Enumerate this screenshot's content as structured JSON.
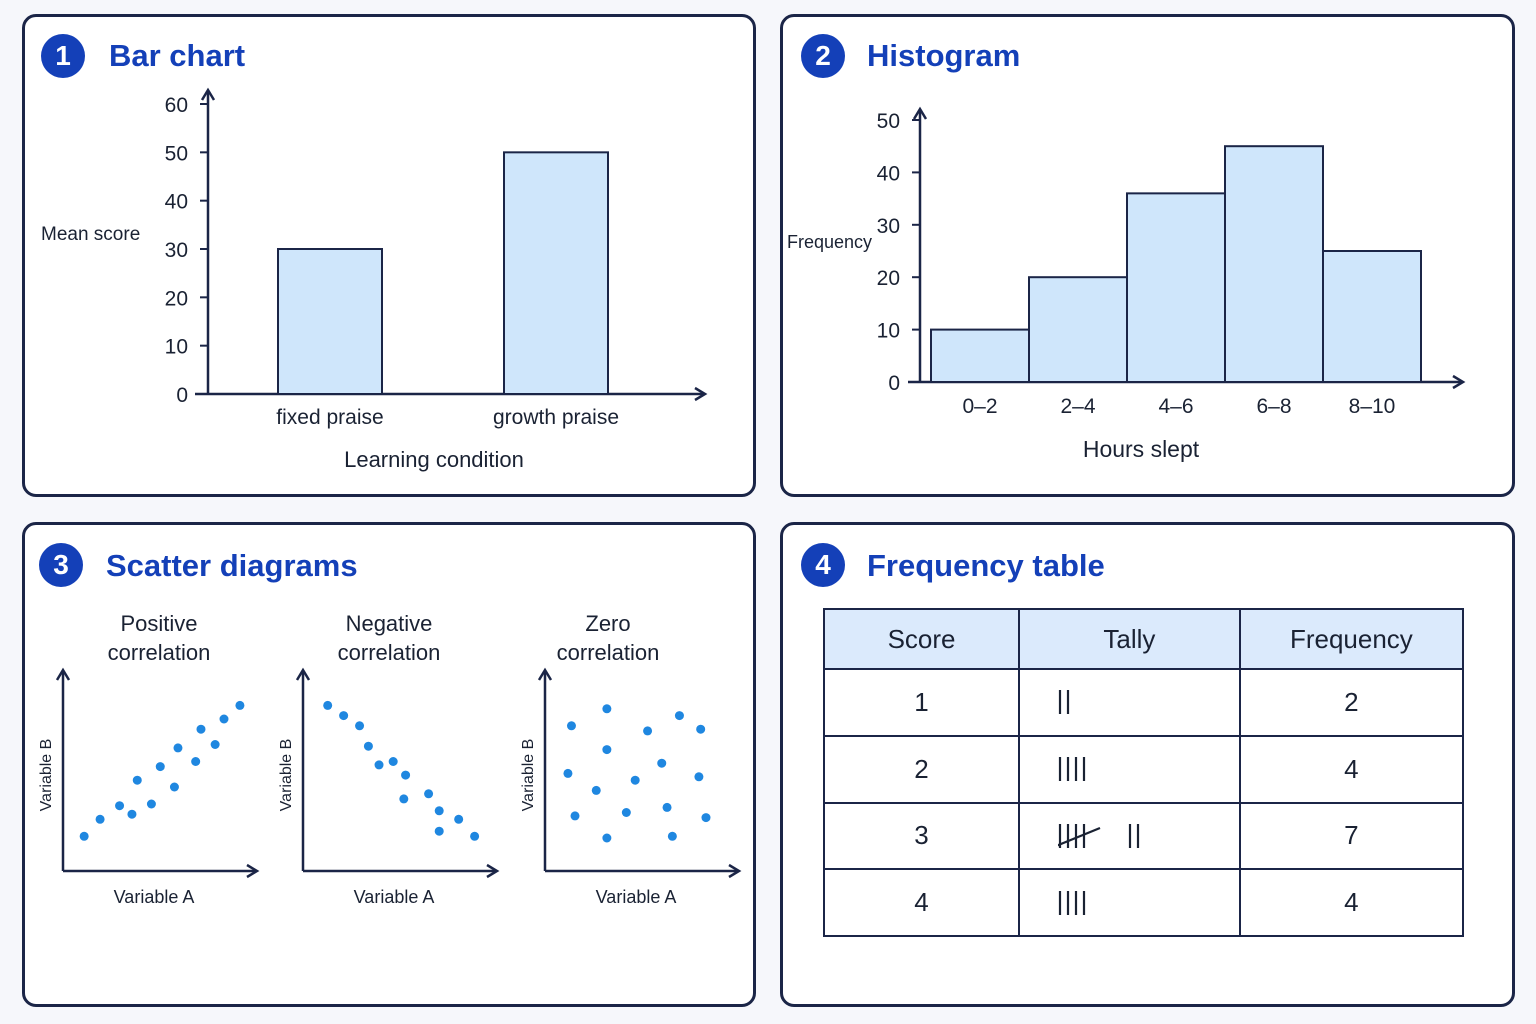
{
  "panels": [
    {
      "number": "1",
      "title": "Bar chart",
      "chart_data": {
        "type": "bar",
        "categories": [
          "fixed praise",
          "growth praise"
        ],
        "values": [
          30,
          50
        ],
        "xlabel": "Learning condition",
        "ylabel": "Mean score",
        "ylim": [
          0,
          60
        ],
        "yticks": [
          0,
          10,
          20,
          30,
          40,
          50,
          60
        ],
        "grid": false
      }
    },
    {
      "number": "2",
      "title": "Histogram",
      "chart_data": {
        "type": "bar",
        "categories": [
          "0–2",
          "2–4",
          "4–6",
          "6–8",
          "8–10"
        ],
        "values": [
          10,
          20,
          36,
          45,
          25
        ],
        "xlabel": "Hours slept",
        "ylabel": "Frequency",
        "ylim": [
          0,
          50
        ],
        "yticks": [
          0,
          10,
          20,
          30,
          40,
          50
        ],
        "grid": false
      }
    },
    {
      "number": "3",
      "title": "Scatter diagrams",
      "chart_data": [
        {
          "type": "scatter",
          "title": "Positive correlation",
          "xlabel": "Variable A",
          "ylabel": "Variable B",
          "points": [
            [
              0.08,
              0.11
            ],
            [
              0.17,
              0.21
            ],
            [
              0.28,
              0.29
            ],
            [
              0.35,
              0.24
            ],
            [
              0.38,
              0.44
            ],
            [
              0.46,
              0.3
            ],
            [
              0.51,
              0.52
            ],
            [
              0.59,
              0.4
            ],
            [
              0.61,
              0.63
            ],
            [
              0.71,
              0.55
            ],
            [
              0.74,
              0.74
            ],
            [
              0.82,
              0.65
            ],
            [
              0.87,
              0.8
            ],
            [
              0.96,
              0.88
            ]
          ]
        },
        {
          "type": "scatter",
          "title": "Negative correlation",
          "xlabel": "Variable A",
          "ylabel": "Variable B",
          "points": [
            [
              0.1,
              0.88
            ],
            [
              0.19,
              0.82
            ],
            [
              0.28,
              0.76
            ],
            [
              0.33,
              0.64
            ],
            [
              0.39,
              0.53
            ],
            [
              0.47,
              0.55
            ],
            [
              0.54,
              0.47
            ],
            [
              0.53,
              0.33
            ],
            [
              0.67,
              0.36
            ],
            [
              0.73,
              0.26
            ],
            [
              0.84,
              0.21
            ],
            [
              0.73,
              0.14
            ],
            [
              0.93,
              0.11
            ]
          ]
        },
        {
          "type": "scatter",
          "title": "Zero correlation",
          "xlabel": "Variable A",
          "ylabel": "Variable B",
          "points": [
            [
              0.11,
              0.76
            ],
            [
              0.31,
              0.86
            ],
            [
              0.31,
              0.62
            ],
            [
              0.54,
              0.73
            ],
            [
              0.72,
              0.82
            ],
            [
              0.84,
              0.74
            ],
            [
              0.09,
              0.48
            ],
            [
              0.25,
              0.38
            ],
            [
              0.47,
              0.44
            ],
            [
              0.62,
              0.54
            ],
            [
              0.83,
              0.46
            ],
            [
              0.13,
              0.23
            ],
            [
              0.42,
              0.25
            ],
            [
              0.65,
              0.28
            ],
            [
              0.87,
              0.22
            ],
            [
              0.31,
              0.1
            ],
            [
              0.68,
              0.11
            ]
          ]
        }
      ]
    },
    {
      "number": "4",
      "title": "Frequency table",
      "table": {
        "headers": [
          "Score",
          "Tally",
          "Frequency"
        ],
        "rows": [
          {
            "score": "1",
            "tally_groups": 0,
            "tally_singles": 2,
            "frequency": "2"
          },
          {
            "score": "2",
            "tally_groups": 0,
            "tally_singles": 4,
            "frequency": "4"
          },
          {
            "score": "3",
            "tally_groups": 1,
            "tally_singles": 2,
            "frequency": "7"
          },
          {
            "score": "4",
            "tally_groups": 0,
            "tally_singles": 4,
            "frequency": "4"
          }
        ]
      }
    }
  ],
  "colors": {
    "accent": "#1440b8",
    "bar_fill": "#cfe6fb",
    "outline": "#1b2547",
    "scatter_point": "#1f87e0",
    "table_header": "#dbeafc"
  }
}
